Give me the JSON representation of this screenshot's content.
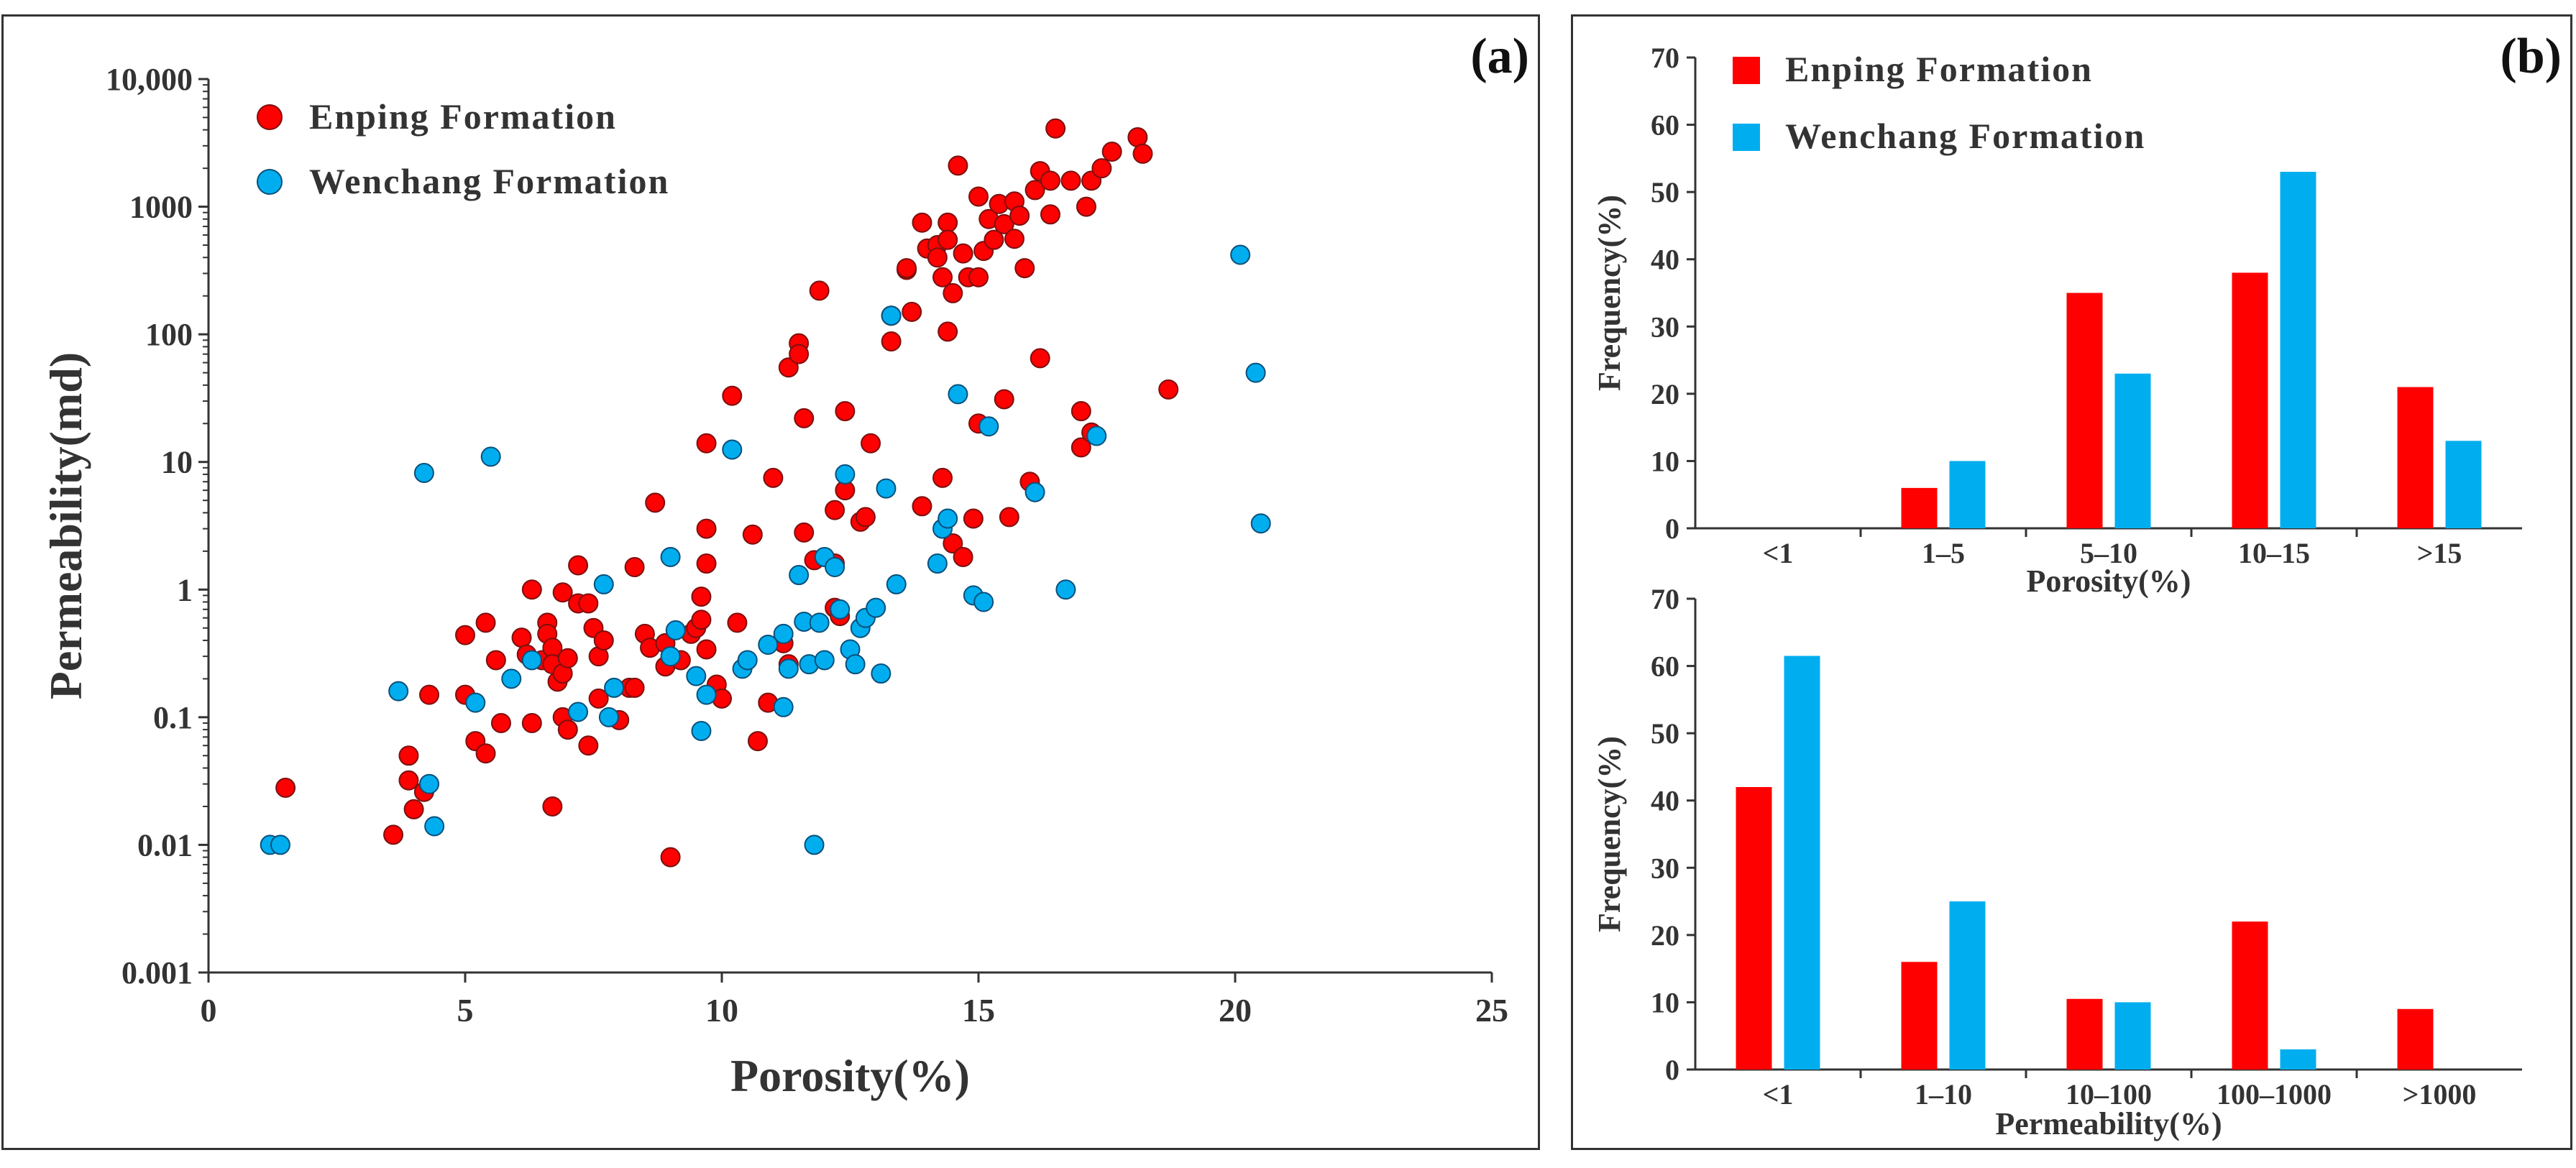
{
  "colors": {
    "enping": "#ff0000",
    "wenchang": "#00aeef",
    "axis": "#333333",
    "marker_edge": "#7a1010",
    "marker_edge_blue": "#0a4f7a"
  },
  "chart_data": [
    {
      "type": "scatter",
      "panel_label": "(a)",
      "title": "",
      "xlabel": "Porosity(%)",
      "ylabel": "Permeability(md)",
      "xlim": [
        0,
        25
      ],
      "ylim": [
        0.001,
        10000
      ],
      "yscale": "log",
      "x_ticks": [
        "0",
        "5",
        "10",
        "15",
        "20",
        "25"
      ],
      "y_ticks": [
        "0.001",
        "0.01",
        "0.1",
        "1",
        "10",
        "100",
        "1000",
        "10,000"
      ],
      "legend_position": "top-left",
      "series": [
        {
          "name": "Enping Formation",
          "points": [
            [
              1.5,
              0.028
            ],
            [
              3.6,
              0.012
            ],
            [
              3.9,
              0.05
            ],
            [
              3.9,
              0.032
            ],
            [
              4.0,
              0.019
            ],
            [
              4.2,
              0.026
            ],
            [
              4.3,
              0.15
            ],
            [
              5.0,
              0.44
            ],
            [
              5.0,
              0.15
            ],
            [
              5.2,
              0.065
            ],
            [
              5.4,
              0.55
            ],
            [
              5.4,
              0.052
            ],
            [
              5.6,
              0.28
            ],
            [
              5.7,
              0.09
            ],
            [
              6.1,
              0.42
            ],
            [
              6.2,
              0.31
            ],
            [
              6.3,
              1.0
            ],
            [
              6.3,
              0.09
            ],
            [
              6.5,
              0.28
            ],
            [
              6.6,
              0.55
            ],
            [
              6.6,
              0.45
            ],
            [
              6.7,
              0.35
            ],
            [
              6.7,
              0.26
            ],
            [
              6.7,
              0.02
            ],
            [
              6.8,
              0.19
            ],
            [
              6.9,
              0.22
            ],
            [
              6.9,
              0.95
            ],
            [
              6.9,
              0.1
            ],
            [
              7.0,
              0.29
            ],
            [
              7.0,
              0.08
            ],
            [
              7.2,
              0.78
            ],
            [
              7.2,
              1.55
            ],
            [
              7.4,
              0.78
            ],
            [
              7.4,
              0.06
            ],
            [
              7.5,
              0.5
            ],
            [
              7.6,
              0.3
            ],
            [
              7.6,
              0.14
            ],
            [
              7.7,
              0.4
            ],
            [
              8.0,
              0.095
            ],
            [
              8.2,
              0.17
            ],
            [
              8.3,
              0.17
            ],
            [
              8.3,
              1.5
            ],
            [
              8.5,
              0.45
            ],
            [
              8.6,
              0.35
            ],
            [
              8.7,
              4.8
            ],
            [
              8.9,
              0.38
            ],
            [
              8.9,
              0.25
            ],
            [
              9.0,
              0.008
            ],
            [
              9.2,
              0.28
            ],
            [
              9.4,
              0.45
            ],
            [
              9.5,
              0.5
            ],
            [
              9.6,
              0.88
            ],
            [
              9.6,
              0.58
            ],
            [
              9.7,
              14
            ],
            [
              9.7,
              3.0
            ],
            [
              9.7,
              1.6
            ],
            [
              9.7,
              0.34
            ],
            [
              9.9,
              0.18
            ],
            [
              10.0,
              0.14
            ],
            [
              10.2,
              33
            ],
            [
              10.3,
              0.55
            ],
            [
              10.6,
              2.7
            ],
            [
              10.7,
              0.065
            ],
            [
              10.9,
              0.13
            ],
            [
              11.0,
              7.5
            ],
            [
              11.2,
              0.38
            ],
            [
              11.3,
              55
            ],
            [
              11.3,
              0.26
            ],
            [
              11.5,
              85
            ],
            [
              11.5,
              70
            ],
            [
              11.6,
              22
            ],
            [
              11.6,
              2.8
            ],
            [
              11.8,
              1.7
            ],
            [
              11.9,
              220
            ],
            [
              12.2,
              4.2
            ],
            [
              12.2,
              1.6
            ],
            [
              12.2,
              0.72
            ],
            [
              12.3,
              0.62
            ],
            [
              12.4,
              25
            ],
            [
              12.4,
              6.0
            ],
            [
              12.7,
              3.4
            ],
            [
              12.8,
              3.7
            ],
            [
              12.9,
              14
            ],
            [
              13.3,
              140
            ],
            [
              13.3,
              88
            ],
            [
              13.6,
              320
            ],
            [
              13.6,
              330
            ],
            [
              13.7,
              150
            ],
            [
              13.9,
              4.5
            ],
            [
              13.9,
              750
            ],
            [
              14.0,
              470
            ],
            [
              14.2,
              500
            ],
            [
              14.2,
              400
            ],
            [
              14.3,
              7.5
            ],
            [
              14.3,
              280
            ],
            [
              14.4,
              750
            ],
            [
              14.4,
              550
            ],
            [
              14.4,
              105
            ],
            [
              14.5,
              2.3
            ],
            [
              14.5,
              210
            ],
            [
              14.6,
              2100
            ],
            [
              14.7,
              430
            ],
            [
              14.7,
              1.8
            ],
            [
              14.8,
              280
            ],
            [
              14.9,
              3.6
            ],
            [
              15.0,
              20
            ],
            [
              15.0,
              1200
            ],
            [
              15.0,
              280
            ],
            [
              15.1,
              450
            ],
            [
              15.2,
              800
            ],
            [
              15.3,
              550
            ],
            [
              15.4,
              1050
            ],
            [
              15.5,
              730
            ],
            [
              15.5,
              31
            ],
            [
              15.6,
              3.7
            ],
            [
              15.7,
              1100
            ],
            [
              15.7,
              560
            ],
            [
              15.8,
              850
            ],
            [
              15.9,
              330
            ],
            [
              16.0,
              7.0
            ],
            [
              16.1,
              1350
            ],
            [
              16.2,
              1900
            ],
            [
              16.2,
              65
            ],
            [
              16.4,
              870
            ],
            [
              16.4,
              1600
            ],
            [
              16.5,
              4100
            ],
            [
              16.8,
              1600
            ],
            [
              17.0,
              25
            ],
            [
              17.0,
              13
            ],
            [
              17.1,
              1000
            ],
            [
              17.2,
              1600
            ],
            [
              17.2,
              17
            ],
            [
              17.4,
              2000
            ],
            [
              17.6,
              2700
            ],
            [
              18.1,
              3500
            ],
            [
              18.2,
              2600
            ],
            [
              18.7,
              37
            ]
          ]
        },
        {
          "name": "Wenchang Formation",
          "points": [
            [
              1.2,
              0.01
            ],
            [
              1.4,
              0.01
            ],
            [
              3.7,
              0.16
            ],
            [
              4.2,
              8.2
            ],
            [
              4.3,
              0.03
            ],
            [
              4.4,
              0.014
            ],
            [
              5.2,
              0.13
            ],
            [
              5.5,
              11
            ],
            [
              5.9,
              0.2
            ],
            [
              6.3,
              0.28
            ],
            [
              7.2,
              0.11
            ],
            [
              7.7,
              1.1
            ],
            [
              7.8,
              0.1
            ],
            [
              7.9,
              0.17
            ],
            [
              9.0,
              1.8
            ],
            [
              9.0,
              0.3
            ],
            [
              9.1,
              0.48
            ],
            [
              9.5,
              0.21
            ],
            [
              9.6,
              0.078
            ],
            [
              9.7,
              0.15
            ],
            [
              10.2,
              12.5
            ],
            [
              10.4,
              0.24
            ],
            [
              10.5,
              0.28
            ],
            [
              10.9,
              0.37
            ],
            [
              11.2,
              0.45
            ],
            [
              11.2,
              0.12
            ],
            [
              11.3,
              0.24
            ],
            [
              11.5,
              1.3
            ],
            [
              11.6,
              0.56
            ],
            [
              11.7,
              0.26
            ],
            [
              11.8,
              0.01
            ],
            [
              11.9,
              0.55
            ],
            [
              12.0,
              1.8
            ],
            [
              12.0,
              0.28
            ],
            [
              12.2,
              1.5
            ],
            [
              12.3,
              0.7
            ],
            [
              12.4,
              8.0
            ],
            [
              12.5,
              0.34
            ],
            [
              12.6,
              0.26
            ],
            [
              12.7,
              0.5
            ],
            [
              12.8,
              0.6
            ],
            [
              13.0,
              0.72
            ],
            [
              13.1,
              0.22
            ],
            [
              13.2,
              6.2
            ],
            [
              13.3,
              140
            ],
            [
              13.4,
              1.1
            ],
            [
              14.2,
              1.6
            ],
            [
              14.3,
              3.0
            ],
            [
              14.4,
              3.6
            ],
            [
              14.6,
              34
            ],
            [
              14.9,
              0.9
            ],
            [
              15.1,
              0.8
            ],
            [
              15.2,
              19
            ],
            [
              16.1,
              5.8
            ],
            [
              16.7,
              1.0
            ],
            [
              17.3,
              16
            ],
            [
              20.1,
              420
            ],
            [
              20.4,
              50
            ],
            [
              20.5,
              3.3
            ]
          ]
        }
      ]
    },
    {
      "type": "bar",
      "panel_label": "(b)",
      "title": "",
      "xlabel": "Porosity(%)",
      "ylabel": "Frequency(%)",
      "ylim": [
        0,
        70
      ],
      "y_ticks": [
        "0",
        "10",
        "20",
        "30",
        "40",
        "50",
        "60",
        "70"
      ],
      "categories": [
        "<1",
        "1–5",
        "5–10",
        "10–15",
        ">15"
      ],
      "legend_position": "top-left",
      "series": [
        {
          "name": "Enping Formation",
          "values": [
            0,
            6,
            35,
            38,
            21
          ]
        },
        {
          "name": "Wenchang Formation",
          "values": [
            0,
            10,
            23,
            53,
            13
          ]
        }
      ]
    },
    {
      "type": "bar",
      "title": "",
      "xlabel": "Permeability(%)",
      "ylabel": "Frequency(%)",
      "ylim": [
        0,
        70
      ],
      "y_ticks": [
        "0",
        "10",
        "20",
        "30",
        "40",
        "50",
        "60",
        "70"
      ],
      "categories": [
        "<1",
        "1–10",
        "10–100",
        "100–1000",
        ">1000"
      ],
      "series": [
        {
          "name": "Enping Formation",
          "values": [
            42,
            16,
            10.5,
            22,
            9
          ]
        },
        {
          "name": "Wenchang Formation",
          "values": [
            61.5,
            25,
            10,
            3,
            0
          ]
        }
      ]
    }
  ]
}
